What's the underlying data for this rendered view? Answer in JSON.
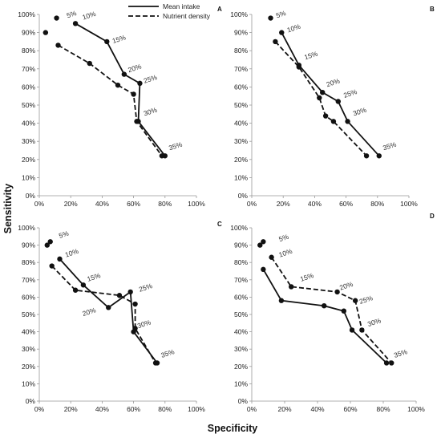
{
  "figure": {
    "xlabel": "Specificity",
    "ylabel": "Sensitivity",
    "legend": [
      {
        "name": "Mean intake",
        "dash": "solid"
      },
      {
        "name": "Nutrient  density",
        "dash": "dashed"
      }
    ]
  },
  "chart_data": [
    {
      "type": "line",
      "panel": "A",
      "xlim": [
        0,
        100
      ],
      "ylim": [
        0,
        100
      ],
      "xticks": [
        "0%",
        "20%",
        "40%",
        "60%",
        "80%",
        "100%"
      ],
      "yticks": [
        "0%",
        "10%",
        "20%",
        "30%",
        "40%",
        "50%",
        "60%",
        "70%",
        "80%",
        "90%",
        "100%"
      ],
      "series": [
        {
          "name": "Mean intake",
          "dash": "solid",
          "x": [
            23,
            43,
            54,
            64,
            63,
            80
          ],
          "y": [
            95,
            85,
            67,
            62,
            41,
            22
          ]
        },
        {
          "name": "Nutrient  density",
          "dash": "dashed",
          "x": [
            12,
            32,
            50,
            60,
            62,
            78
          ],
          "y": [
            83,
            73,
            61,
            56,
            41,
            22
          ]
        }
      ],
      "extra_points": [
        {
          "x": 11,
          "y": 98
        },
        {
          "x": 4,
          "y": 90
        }
      ],
      "labels": [
        {
          "text": "5%",
          "x": 18,
          "y": 98
        },
        {
          "text": "10%",
          "x": 28,
          "y": 97
        },
        {
          "text": "15%",
          "x": 47,
          "y": 84
        },
        {
          "text": "20%",
          "x": 57,
          "y": 68
        },
        {
          "text": "25%",
          "x": 67,
          "y": 62
        },
        {
          "text": "30%",
          "x": 67,
          "y": 44
        },
        {
          "text": "35%",
          "x": 83,
          "y": 25
        }
      ]
    },
    {
      "type": "line",
      "panel": "B",
      "xlim": [
        0,
        100
      ],
      "ylim": [
        0,
        100
      ],
      "xticks": [
        "0%",
        "20%",
        "40%",
        "60%",
        "80%",
        "100%"
      ],
      "yticks": [
        "0%",
        "10%",
        "20%",
        "30%",
        "40%",
        "50%",
        "60%",
        "70%",
        "80%",
        "90%",
        "100%"
      ],
      "series": [
        {
          "name": "Mean intake",
          "dash": "solid",
          "x": [
            19,
            30,
            45,
            55,
            61,
            81
          ],
          "y": [
            90,
            72,
            57,
            52,
            41,
            22
          ]
        },
        {
          "name": "Nutrient  density",
          "dash": "dashed",
          "x": [
            15,
            30,
            43,
            47,
            52,
            73
          ],
          "y": [
            85,
            71,
            54,
            44,
            41,
            22
          ]
        }
      ],
      "extra_points": [
        {
          "x": 12,
          "y": 98
        }
      ],
      "labels": [
        {
          "text": "5%",
          "x": 16,
          "y": 98
        },
        {
          "text": "10%",
          "x": 23,
          "y": 90
        },
        {
          "text": "15%",
          "x": 34,
          "y": 75
        },
        {
          "text": "20%",
          "x": 48,
          "y": 60
        },
        {
          "text": "25%",
          "x": 59,
          "y": 54
        },
        {
          "text": "30%",
          "x": 65,
          "y": 44
        },
        {
          "text": "35%",
          "x": 84,
          "y": 25
        }
      ]
    },
    {
      "type": "line",
      "panel": "C",
      "xlim": [
        0,
        100
      ],
      "ylim": [
        0,
        100
      ],
      "xticks": [
        "0%",
        "20%",
        "40%",
        "60%",
        "80%",
        "100%"
      ],
      "yticks": [
        "0%",
        "10%",
        "20%",
        "30%",
        "40%",
        "50%",
        "60%",
        "70%",
        "80%",
        "90%",
        "100%"
      ],
      "series": [
        {
          "name": "Mean intake",
          "dash": "solid",
          "x": [
            13,
            28,
            44,
            58,
            60,
            75
          ],
          "y": [
            82,
            67,
            54,
            63,
            40,
            22
          ]
        },
        {
          "name": "Nutrient  density",
          "dash": "dashed",
          "x": [
            8,
            23,
            51,
            61,
            61,
            74
          ],
          "y": [
            78,
            64,
            61,
            56,
            42,
            22
          ]
        }
      ],
      "extra_points": [
        {
          "x": 5,
          "y": 90
        },
        {
          "x": 7,
          "y": 92
        }
      ],
      "labels": [
        {
          "text": "5%",
          "x": 13,
          "y": 94
        },
        {
          "text": "10%",
          "x": 17,
          "y": 83
        },
        {
          "text": "15%",
          "x": 31,
          "y": 69
        },
        {
          "text": "20%",
          "x": 28,
          "y": 49
        },
        {
          "text": "25%",
          "x": 64,
          "y": 63
        },
        {
          "text": "30%",
          "x": 63,
          "y": 42
        },
        {
          "text": "35%",
          "x": 78,
          "y": 25
        }
      ]
    },
    {
      "type": "line",
      "panel": "D",
      "xlim": [
        0,
        100
      ],
      "ylim": [
        0,
        100
      ],
      "xticks": [
        "0%",
        "20%",
        "40%",
        "60%",
        "80%",
        "100%"
      ],
      "yticks": [
        "0%",
        "10%",
        "20%",
        "30%",
        "40%",
        "50%",
        "60%",
        "70%",
        "80%",
        "90%",
        "100%"
      ],
      "series": [
        {
          "name": "Mean intake",
          "dash": "solid",
          "x": [
            7,
            18,
            44,
            56,
            61,
            82
          ],
          "y": [
            76,
            58,
            55,
            52,
            41,
            22
          ]
        },
        {
          "name": "Nutrient  density",
          "dash": "dashed",
          "x": [
            12,
            24,
            52,
            63,
            67,
            85
          ],
          "y": [
            83,
            66,
            63,
            58,
            41,
            22
          ]
        }
      ],
      "extra_points": [
        {
          "x": 5,
          "y": 90
        },
        {
          "x": 7,
          "y": 92
        }
      ],
      "labels": [
        {
          "text": "5%",
          "x": 17,
          "y": 92
        },
        {
          "text": "10%",
          "x": 17,
          "y": 83
        },
        {
          "text": "15%",
          "x": 30,
          "y": 69
        },
        {
          "text": "20%",
          "x": 54,
          "y": 64
        },
        {
          "text": "25%",
          "x": 66,
          "y": 56
        },
        {
          "text": "30%",
          "x": 71,
          "y": 43
        },
        {
          "text": "35%",
          "x": 87,
          "y": 25
        }
      ]
    }
  ]
}
